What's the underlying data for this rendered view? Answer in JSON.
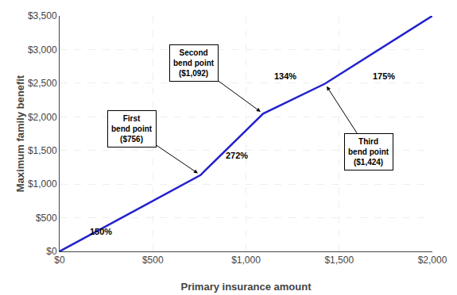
{
  "chart_data": {
    "type": "line",
    "x": [
      0,
      756,
      1092,
      1424,
      2000
    ],
    "values": [
      0,
      1134,
      2048,
      2493,
      3501
    ],
    "color": "#2222cc",
    "xlabel": "Primary insurance amount",
    "ylabel": "Maximum family benefit",
    "xlim": [
      0,
      2000
    ],
    "ylim": [
      0,
      3501
    ],
    "xticks": [
      {
        "value": 0,
        "label": "$0"
      },
      {
        "value": 500,
        "label": "$500"
      },
      {
        "value": 1000,
        "label": "$1,000"
      },
      {
        "value": 1500,
        "label": "$1,500"
      },
      {
        "value": 2000,
        "label": "$2,000"
      }
    ],
    "yticks": [
      {
        "value": 0,
        "label": "$0"
      },
      {
        "value": 500,
        "label": "$500"
      },
      {
        "value": 1000,
        "label": "$1,000"
      },
      {
        "value": 1500,
        "label": "$1,500"
      },
      {
        "value": 2000,
        "label": "$2,000"
      },
      {
        "value": 2500,
        "label": "$2,500"
      },
      {
        "value": 3000,
        "label": "$3,000"
      },
      {
        "value": 3500,
        "label": "$3,500"
      }
    ],
    "grid": true,
    "annotations": [
      {
        "text": "First\nbend point\n($756)",
        "x": 390,
        "y": 1820,
        "arrow_x": 756,
        "arrow_y": 1134
      },
      {
        "text": "Second\nbend point\n($1,092)",
        "x": 720,
        "y": 2800,
        "arrow_x": 1092,
        "arrow_y": 2048
      },
      {
        "text": "Third\nbend point\n($1,424)",
        "x": 1660,
        "y": 1480,
        "arrow_x": 1424,
        "arrow_y": 2493
      },
      {
        "text": "150%",
        "x": 220,
        "y": 300
      },
      {
        "text": "272%",
        "x": 950,
        "y": 1430
      },
      {
        "text": "134%",
        "x": 1210,
        "y": 2600
      },
      {
        "text": "175%",
        "x": 1740,
        "y": 2600
      }
    ]
  }
}
